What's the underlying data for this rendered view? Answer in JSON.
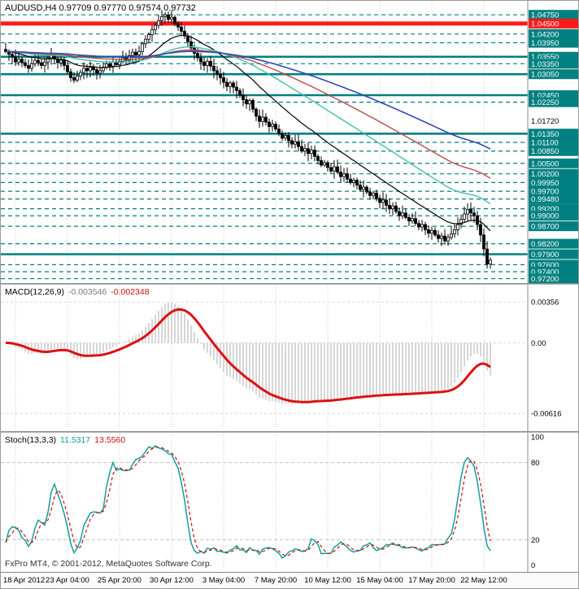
{
  "app": {
    "copyright": "FxPro MT4, © 2001-2012, MetaQuotes Software Corp."
  },
  "colors": {
    "bg": "#ffffff",
    "grid": "#c9c9c9",
    "teal": "#008080",
    "red_line": "#ff1a1a",
    "box_text": "#ffffff",
    "axis_text": "#000000",
    "candle_outline": "#000000",
    "bull_fill": "#ffffff",
    "bear_fill": "#000000",
    "hist": "#c4c4c4",
    "macd_signal": "#dd1111",
    "stoch_k": "#129e9e",
    "stoch_d": "#cc1111",
    "indicator_level": "#c0c0c0"
  },
  "chart_data": [
    {
      "type": "candlestick",
      "title": "AUDUSD,H4",
      "symbol": "AUDUSD",
      "timeframe": "H4",
      "ohlc_display": {
        "open": "0.97709",
        "high": "0.97770",
        "low": "0.97574",
        "close": "0.97732"
      },
      "ylim": [
        0.9712,
        1.0515
      ],
      "closes": [
        1.037,
        1.0362,
        1.0355,
        1.034,
        1.0348,
        1.0338,
        1.033,
        1.0322,
        1.0335,
        1.0345,
        1.0338,
        1.033,
        1.034,
        1.0352,
        1.036,
        1.0348,
        1.0338,
        1.0345,
        1.033,
        1.0312,
        1.0295,
        1.0288,
        1.03,
        1.031,
        1.0322,
        1.0315,
        1.0325,
        1.0318,
        1.0308,
        1.0315,
        1.0325,
        1.0335,
        1.0328,
        1.034,
        1.0332,
        1.0342,
        1.0352,
        1.0345,
        1.0358,
        1.0368,
        1.036,
        1.037,
        1.0392,
        1.0405,
        1.0418,
        1.0432,
        1.0445,
        1.0458,
        1.047,
        1.0475,
        1.0462,
        1.0468,
        1.045,
        1.044,
        1.0428,
        1.0415,
        1.0398,
        1.038,
        1.0365,
        1.0352,
        1.034,
        1.033,
        1.0342,
        1.0328,
        1.0315,
        1.0305,
        1.0295,
        1.0282,
        1.027,
        1.028,
        1.0268,
        1.0258,
        1.0245,
        1.0232,
        1.022,
        1.023,
        1.0205,
        1.0185,
        1.017,
        1.0182,
        1.0168,
        1.0155,
        1.0162,
        1.0148,
        1.0135,
        1.0122,
        1.013,
        1.0115,
        1.0105,
        1.0112,
        1.0098,
        1.0085,
        1.0092,
        1.0078,
        1.0088,
        1.007,
        1.0058,
        1.0045,
        1.0052,
        1.0038,
        1.0028,
        1.004,
        1.0025,
        1.0012,
        1.002,
        1.0005,
        0.9995,
        1.0002,
        0.9988,
        0.9975,
        0.9982,
        0.9968,
        0.9958,
        0.9965,
        0.995,
        0.9938,
        0.9945,
        0.993,
        0.992,
        0.9928,
        0.9912,
        0.99,
        0.9908,
        0.9895,
        0.9885,
        0.9892,
        0.9878,
        0.9868,
        0.9875,
        0.986,
        0.985,
        0.9858,
        0.9845,
        0.9835,
        0.9842,
        0.9828,
        0.9838,
        0.9848,
        0.986,
        0.9875,
        0.989,
        0.9905,
        0.9918,
        0.9908,
        0.99,
        0.9875,
        0.9845,
        0.9805,
        0.9762,
        0.9773
      ],
      "levels": [
        {
          "price": 1.0475,
          "label": "1.04750",
          "style": "dashed"
        },
        {
          "price": 1.045,
          "label": "1.04500",
          "style": "red"
        },
        {
          "price": 1.042,
          "label": "1.04200",
          "style": "dashed"
        },
        {
          "price": 1.0395,
          "label": "1.03950",
          "style": "dashed"
        },
        {
          "price": 1.0355,
          "label": "1.03550",
          "style": "solid"
        },
        {
          "price": 1.0335,
          "label": "1.03350",
          "style": "dashed"
        },
        {
          "price": 1.0305,
          "label": "1.03050",
          "style": "solid"
        },
        {
          "price": 1.0245,
          "label": "1.02450",
          "style": "solid"
        },
        {
          "price": 1.0225,
          "label": "1.02250",
          "style": "dashed"
        },
        {
          "price": 1.0135,
          "label": "1.01350",
          "style": "solid"
        },
        {
          "price": 1.011,
          "label": "1.01100",
          "style": "dashed"
        },
        {
          "price": 1.0085,
          "label": "1.00850",
          "style": "dashed"
        },
        {
          "price": 1.005,
          "label": "1.00500",
          "style": "dashed"
        },
        {
          "price": 1.002,
          "label": "1.00200",
          "style": "dashed"
        },
        {
          "price": 0.9995,
          "label": "0.99950",
          "style": "dashed"
        },
        {
          "price": 0.997,
          "label": "0.99700",
          "style": "dashed"
        },
        {
          "price": 0.9948,
          "label": "0.99480",
          "style": "dashed"
        },
        {
          "price": 0.992,
          "label": "0.99200",
          "style": "dashed"
        },
        {
          "price": 0.99,
          "label": "0.99000",
          "style": "dashed"
        },
        {
          "price": 0.987,
          "label": "0.98700",
          "style": "dashed"
        },
        {
          "price": 0.982,
          "label": "0.98200",
          "style": "dashed"
        },
        {
          "price": 0.979,
          "label": "0.97900",
          "style": "solid"
        },
        {
          "price": 0.976,
          "label": "0.97600",
          "style": "dashed"
        },
        {
          "price": 0.974,
          "label": "0.97400",
          "style": "dashed"
        },
        {
          "price": 0.972,
          "label": "0.97200",
          "style": "dashed"
        }
      ],
      "plain_ticks": [
        {
          "price": 1.0172,
          "label": "1.01720"
        }
      ],
      "moving_averages": [
        {
          "period": 21,
          "color": "#000000",
          "width": 1.2
        },
        {
          "period": 55,
          "color": "#3fbfa8",
          "width": 1.4
        },
        {
          "period": 89,
          "color": "#c04848",
          "width": 1.4
        },
        {
          "period": 144,
          "color": "#3148b8",
          "width": 1.6
        }
      ],
      "x_labels": [
        {
          "bar": 3,
          "text": "18 Apr 2012"
        },
        {
          "bar": 19,
          "text": "23 Apr 04:00"
        },
        {
          "bar": 35,
          "text": "25 Apr 20:00"
        },
        {
          "bar": 51,
          "text": "30 Apr 12:00"
        },
        {
          "bar": 67,
          "text": "3 May 04:00"
        },
        {
          "bar": 83,
          "text": "7 May 20:00"
        },
        {
          "bar": 99,
          "text": "10 May 12:00"
        },
        {
          "bar": 115,
          "text": "15 May 04:00"
        },
        {
          "bar": 131,
          "text": "17 May 20:00"
        },
        {
          "bar": 147,
          "text": "22 May 12:00"
        }
      ]
    },
    {
      "type": "line",
      "name": "MACD(12,26,9)",
      "params": [
        12,
        26,
        9
      ],
      "display_values": [
        "-0.003546",
        "-0.002348"
      ],
      "ylim": [
        -0.007,
        0.0045
      ],
      "ticks": [
        {
          "v": 0.00356,
          "text": "0.00356"
        },
        {
          "v": 0,
          "text": "0.00"
        },
        {
          "v": -0.00616,
          "text": "-0.00616"
        }
      ]
    },
    {
      "type": "line",
      "name": "Stoch(13,3,3)",
      "params": [
        13,
        3,
        3
      ],
      "display_values": [
        "11.5317",
        "13.5560"
      ],
      "ylim": [
        0,
        100
      ],
      "levels": [
        80,
        20
      ],
      "ticks": [
        {
          "v": 100,
          "text": "100"
        },
        {
          "v": 80,
          "text": "80"
        },
        {
          "v": 20,
          "text": "20"
        },
        {
          "v": 0,
          "text": "0"
        }
      ]
    }
  ]
}
